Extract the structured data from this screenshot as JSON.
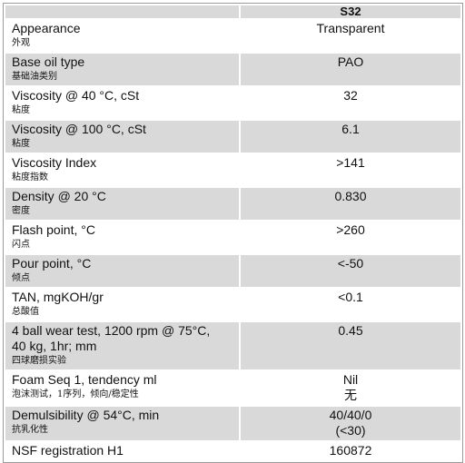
{
  "table": {
    "header": [
      "",
      "S32"
    ],
    "rows": [
      {
        "property": [
          "Appearance"
        ],
        "property_zh": "外观",
        "value": [
          "Transparent"
        ]
      },
      {
        "property": [
          "Base oil type"
        ],
        "property_zh": "基础油类别",
        "value": [
          "PAO"
        ]
      },
      {
        "property": [
          "Viscosity @ 40 °C, cSt"
        ],
        "property_zh": "粘度",
        "value": [
          "32"
        ]
      },
      {
        "property": [
          "Viscosity @ 100 °C, cSt"
        ],
        "property_zh": "粘度",
        "value": [
          "6.1"
        ]
      },
      {
        "property": [
          "Viscosity Index"
        ],
        "property_zh": "粘度指数",
        "value": [
          ">141"
        ]
      },
      {
        "property": [
          "Density @ 20 °C"
        ],
        "property_zh": "密度",
        "value": [
          "0.830"
        ]
      },
      {
        "property": [
          "Flash point, °C"
        ],
        "property_zh": "闪点",
        "value": [
          ">260"
        ]
      },
      {
        "property": [
          "Pour point, °C"
        ],
        "property_zh": "倾点",
        "value": [
          "<-50"
        ]
      },
      {
        "property": [
          "TAN, mgKOH/gr"
        ],
        "property_zh": "总酸值",
        "value": [
          "<0.1"
        ]
      },
      {
        "property": [
          "4 ball wear test, 1200 rpm @ 75°C,",
          "40 kg, 1hr; mm"
        ],
        "property_zh": "四球磨损实验",
        "value": [
          "0.45"
        ]
      },
      {
        "property": [
          "Foam Seq 1, tendency ml"
        ],
        "property_zh": "泡沫测试，1序列，倾向/稳定性",
        "value": [
          "Nil",
          "无"
        ]
      },
      {
        "property": [
          "Demulsibility @ 54°C, min"
        ],
        "property_zh": "抗乳化性",
        "value": [
          "40/40/0",
          "(<30)"
        ]
      },
      {
        "property": [
          "NSF registration H1"
        ],
        "value": [
          "160872"
        ]
      }
    ]
  }
}
